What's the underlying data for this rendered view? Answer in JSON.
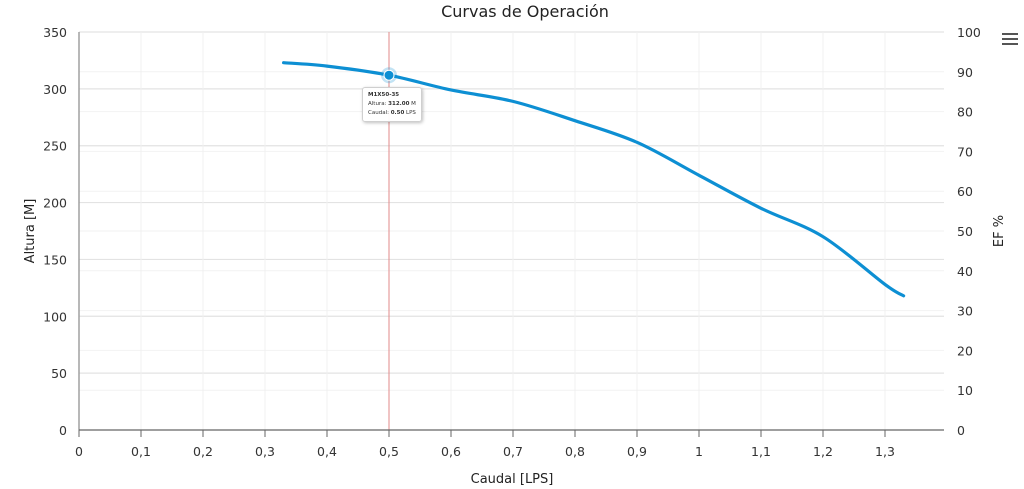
{
  "chart_data": {
    "type": "line",
    "title": "Curvas de Operación",
    "xlabel": "Caudal [LPS]",
    "ylabel": "Altura [M]",
    "y2label": "EF %",
    "xlim": [
      0,
      1.39
    ],
    "ylim": [
      0,
      350
    ],
    "y2lim": [
      0,
      100
    ],
    "x_ticks": [
      "0",
      "0,1",
      "0,2",
      "0,3",
      "0,4",
      "0,5",
      "0,6",
      "0,7",
      "0,8",
      "0,9",
      "1",
      "1,1",
      "1,2",
      "1,3"
    ],
    "x_tick_values": [
      0,
      0.1,
      0.2,
      0.3,
      0.4,
      0.5,
      0.6,
      0.7,
      0.8,
      0.9,
      1.0,
      1.1,
      1.2,
      1.3
    ],
    "y_ticks": [
      0,
      50,
      100,
      150,
      200,
      250,
      300,
      350
    ],
    "y2_ticks": [
      0,
      10,
      20,
      30,
      40,
      50,
      60,
      70,
      80,
      90,
      100
    ],
    "grid": true,
    "legend": null,
    "series": [
      {
        "name": "M1X50-35",
        "axis": "left",
        "color": "#0d8fd3",
        "x": [
          0.33,
          0.4,
          0.5,
          0.6,
          0.7,
          0.8,
          0.9,
          1.0,
          1.1,
          1.2,
          1.3,
          1.33
        ],
        "y": [
          323,
          320,
          312,
          299,
          289,
          272,
          253,
          224,
          195,
          170,
          128,
          118
        ]
      }
    ],
    "crosshair": {
      "x": 0.5,
      "color": "#e08a8a"
    },
    "highlighted_point": {
      "x": 0.5,
      "y": 312
    }
  },
  "tooltip": {
    "series_name": "M1X50-35",
    "altura_label": "Altura:",
    "altura_value": "312.00",
    "altura_unit": "M",
    "caudal_label": "Caudal:",
    "caudal_value": "0.50",
    "caudal_unit": "LPS"
  },
  "menu": {
    "icon": "hamburger-menu-icon"
  }
}
